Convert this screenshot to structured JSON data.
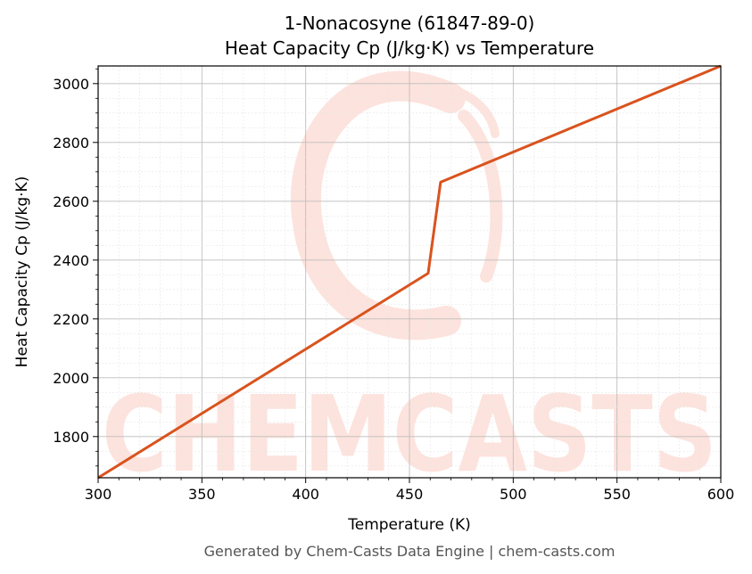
{
  "watermark": {
    "text": "CHEMCASTS",
    "color": "#fde3dd"
  },
  "footer": "Generated by Chem-Casts Data Engine | chem-casts.com",
  "chart_data": {
    "type": "line",
    "title_line1": "1-Nonacosyne (61847-89-0)",
    "title_line2": "Heat Capacity Cp (J/kg·K) vs Temperature",
    "xlabel": "Temperature (K)",
    "ylabel": "Heat Capacity Cp (J/kg·K)",
    "xlim": [
      300,
      600
    ],
    "ylim": [
      1660,
      3060
    ],
    "xticks": [
      300,
      350,
      400,
      450,
      500,
      550,
      600
    ],
    "yticks": [
      1800,
      2000,
      2200,
      2400,
      2600,
      2800,
      3000
    ],
    "grid": true,
    "series": [
      {
        "color": "#d9531e",
        "points": [
          [
            300,
            1660
          ],
          [
            459,
            2355
          ],
          [
            465,
            2665
          ],
          [
            600,
            3060
          ]
        ]
      }
    ]
  }
}
